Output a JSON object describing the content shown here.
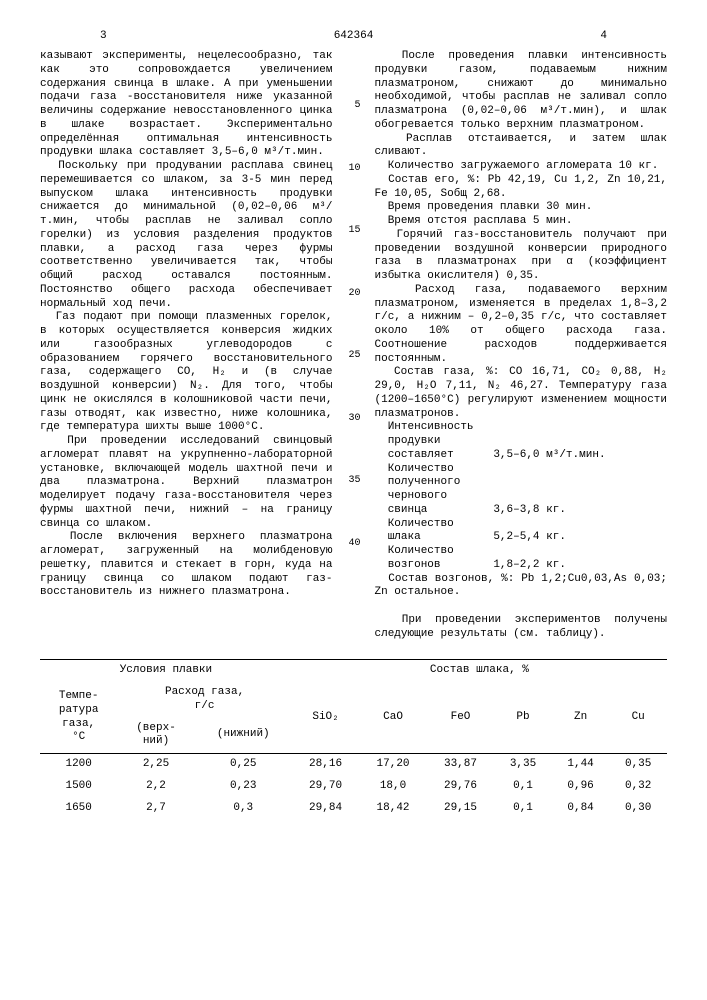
{
  "header": {
    "page_left": "3",
    "patent_number": "642364",
    "page_right": "4"
  },
  "left_column_text": "казывают эксперименты, нецелесообразно, так как это сопровождается увеличением содержания свинца в шлаке. А при уменьшении подачи газа -восстановителя ниже указанной величины содержание невосстановленного цинка в шлаке возрастает. Экспериментально определённая оптимальная интенсивность продувки шлака составляет 3,5–6,0 м³/т.мин.\n  Поскольку при продувании расплава свинец перемешивается со шлаком, за 3-5 мин перед выпуском шлака интенсивность продувки снижается до минимальной (0,02–0,06 м³/т.мин, чтобы расплав не заливал сопло горелки) из условия разделения продуктов плавки, а расход газа через фурмы соответственно увеличивается так, чтобы общий расход оставался постоянным. Постоянство общего расхода обеспечивает нормальный ход печи.\n  Газ подают при помощи плазменных горелок, в которых осуществляется конверсия жидких или газообразных углеводородов с образованием горячего восстановительного газа, содержащего CO, H₂ и (в случае воздушной конверсии) N₂. Для того, чтобы цинк не окислялся в колошниковой части печи, газы отводят, как известно, ниже колошника, где температура шихты выше 1000°C.\n  При проведении исследований свинцовый агломерат плавят на укрупненно-лабораторной установке, включающей модель шахтной печи и два плазматрона. Верхний плазматрон моделирует подачу газа-восстановителя через фурмы шахтной печи, нижний – на границу свинца со шлаком.\n  После включения верхнего плазматрона агломерат, загруженный на молибденовую решетку, плавится и стекает в горн, куда на границу свинца со шлаком подают газ-восстановитель из нижнего плазматрона.",
  "right_column_text": "  После проведения плавки интенсивность продувки газом, подаваемым нижним плазматроном, снижают до минимально необходимой, чтобы расплав не заливал сопло плазматрона (0,02–0,06 м³/т.мин), и шлак обогревается только верхним плазматроном.\n  Расплав отстаивается, и затем шлак сливают.\n  Количество загружаемого агломерата 10 кг.\n  Состав его, %: Pb 42,19, Cu 1,2, Zn 10,21, Fe 10,05, Sобщ 2,68.\n  Время проведения плавки 30 мин.\n  Время отстоя расплава 5 мин.\n  Горячий газ-восстановитель получают при проведении воздушной конверсии природного газа в плазматронах при α (коэффициент избытка окислителя) 0,35.\n  Расход газа, подаваемого верхним плазматроном, изменяется в пределах 1,8–3,2 г/с, а нижним – 0,2–0,35 г/с, что составляет около 10% от общего расхода газа. Соотношение расходов поддерживается постоянным.\n  Состав газа, %: CO 16,71, CO₂ 0,88, H₂ 29,0, H₂O 7,11, N₂ 46,27. Температуру газа (1200–1650°C) регулируют изменением мощности плазматронов.\n  Интенсивность\n  продувки\n  составляет      3,5–6,0 м³/т.мин.\n  Количество\n  полученного\n  чернового\n  свинца          3,6–3,8 кг.\n  Количество\n  шлака           5,2–5,4 кг.\n  Количество\n  возгонов        1,8–2,2 кг.\n  Состав возгонов, %: Pb 1,2;Cu0,03,As 0,03; Zn остальное.\n\n  При проведении экспериментов получены следующие результаты (см. таблицу).",
  "line_numbers": "\n\n\n\n5\n\n\n\n\n10\n\n\n\n\n15\n\n\n\n\n20\n\n\n\n\n25\n\n\n\n\n30\n\n\n\n\n35\n\n\n\n\n40",
  "table": {
    "conditions_heading": "Условия плавки",
    "slag_heading": "Состав шлака, %",
    "col_temp": "Темпе-\nратура\nгаза,\n°C",
    "col_flow": "Расход газа,\nг/с",
    "col_upper": "(верх-\nний)",
    "col_lower": "(нижний)",
    "cols": [
      "SiO₂",
      "CaO",
      "FeO",
      "Pb",
      "Zn",
      "Cu"
    ],
    "rows": [
      {
        "t": "1200",
        "up": "2,25",
        "low": "0,25",
        "c": [
          "28,16",
          "17,20",
          "33,87",
          "3,35",
          "1,44",
          "0,35"
        ]
      },
      {
        "t": "1500",
        "up": "2,2",
        "low": "0,23",
        "c": [
          "29,70",
          "18,0",
          "29,76",
          "0,1",
          "0,96",
          "0,32"
        ]
      },
      {
        "t": "1650",
        "up": "2,7",
        "low": "0,3",
        "c": [
          "29,84",
          "18,42",
          "29,15",
          "0,1",
          "0,84",
          "0,30"
        ]
      }
    ]
  }
}
